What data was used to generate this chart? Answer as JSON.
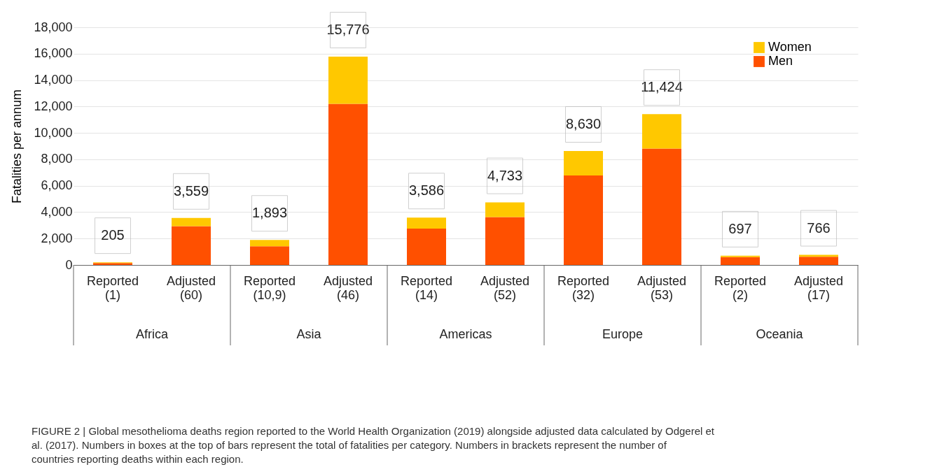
{
  "chart_data": {
    "type": "bar",
    "stacked": true,
    "ylabel": "Fatalities per annum",
    "categories": [
      "Reported (1)",
      "Adjusted (60)",
      "Reported (10,9)",
      "Adjusted (46)",
      "Reported (14)",
      "Adjusted (52)",
      "Reported (32)",
      "Adjusted (53)",
      "Reported (2)",
      "Adjusted (17)"
    ],
    "series": [
      {
        "name": "Men",
        "color": "#ff5000",
        "values": [
          140,
          2940,
          1410,
          12200,
          2750,
          3620,
          6780,
          8810,
          590,
          620
        ]
      },
      {
        "name": "Women",
        "color": "#ffc800",
        "values": [
          65,
          619,
          483,
          3576,
          836,
          1113,
          1850,
          2614,
          107,
          146
        ]
      }
    ],
    "totals": [
      "205",
      "3,559",
      "1,893",
      "15,776",
      "3,586",
      "4,733",
      "8,630",
      "11,424",
      "697",
      "766"
    ],
    "ylim": [
      0,
      18000
    ],
    "yticks": [
      0,
      {
        "value": 2000,
        "label": "2,000"
      },
      {
        "value": 4000,
        "label": "4,000"
      },
      {
        "value": 6000,
        "label": "6,000"
      },
      {
        "value": 8000,
        "label": "8,000"
      },
      {
        "value": 10000,
        "label": "10,000"
      },
      {
        "value": 12000,
        "label": "12,000"
      },
      {
        "value": 14000,
        "label": "14,000"
      },
      {
        "value": 16000,
        "label": "16,000"
      },
      {
        "value": 18000,
        "label": "18,000"
      }
    ],
    "grid": "y",
    "legend": "top right",
    "annotations": [
      "Africa",
      "Asia",
      "Americas",
      "Europe",
      "Oceania",
      "FIGURE 2 | Global mesothelioma deaths region reported to the World Health Organization (2019) alongside adjusted data calculated by Odgerel et al. (2017). Numbers in boxes at the top of bars represent the total of fatalities per category. Numbers in brackets represent the number of countries reporting deaths within each region."
    ]
  }
}
